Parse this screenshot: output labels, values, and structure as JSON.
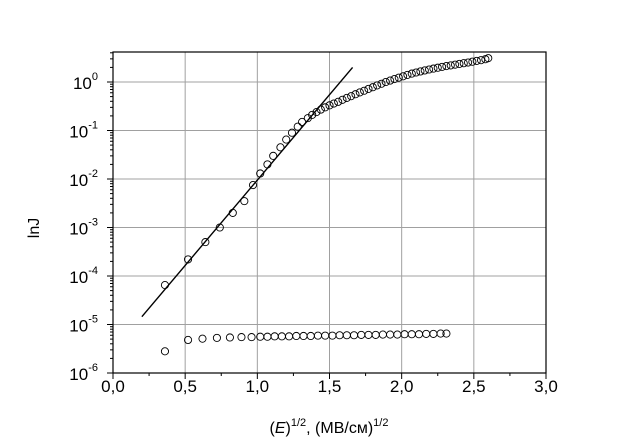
{
  "chart_data": {
    "type": "scatter",
    "title": "",
    "xlabel": "(E)1/2, (МВ/см)1/2",
    "xlabel_parts": {
      "var": "E",
      "exp1": "1/2",
      "rest": ", (МВ/см)",
      "exp2": "1/2"
    },
    "ylabel": "lnJ",
    "xlim": [
      0.0,
      3.0
    ],
    "ylim": [
      1e-06,
      5
    ],
    "yscale": "log",
    "grid": true,
    "x_ticks": [
      "0,0",
      "0,5",
      "1,0",
      "1,5",
      "2,0",
      "2,5",
      "3,0"
    ],
    "x_tick_values": [
      0.0,
      0.5,
      1.0,
      1.5,
      2.0,
      2.5,
      3.0
    ],
    "y_ticks": [
      {
        "base": "10",
        "exp": "-6",
        "value": 1e-06
      },
      {
        "base": "10",
        "exp": "-5",
        "value": 1e-05
      },
      {
        "base": "10",
        "exp": "-4",
        "value": 0.0001
      },
      {
        "base": "10",
        "exp": "-3",
        "value": 0.001
      },
      {
        "base": "10",
        "exp": "-2",
        "value": 0.01
      },
      {
        "base": "10",
        "exp": "-1",
        "value": 0.1
      },
      {
        "base": "10",
        "exp": "0",
        "value": 1
      }
    ],
    "marker_color": "#000000",
    "marker": "open-circle",
    "series": [
      {
        "marker": "open-circle",
        "x": [
          0.36,
          0.52,
          0.64,
          0.74,
          0.83,
          0.91,
          0.97,
          1.02,
          1.07,
          1.11,
          1.16,
          1.2,
          1.24,
          1.28,
          1.31,
          1.35,
          1.38,
          1.41,
          1.44,
          1.47,
          1.5,
          1.53,
          1.56,
          1.59,
          1.62,
          1.65,
          1.68,
          1.71,
          1.74,
          1.77,
          1.8,
          1.83,
          1.86,
          1.89,
          1.92,
          1.95,
          1.98,
          2.01,
          2.04,
          2.07,
          2.1,
          2.13,
          2.16,
          2.19,
          2.22,
          2.25,
          2.28,
          2.31,
          2.34,
          2.37,
          2.4,
          2.43,
          2.46,
          2.49,
          2.52,
          2.55,
          2.58,
          2.6
        ],
        "y": [
          6.5e-05,
          0.00022,
          0.0005,
          0.001,
          0.002,
          0.0035,
          0.0075,
          0.013,
          0.02,
          0.03,
          0.045,
          0.065,
          0.09,
          0.12,
          0.15,
          0.18,
          0.21,
          0.24,
          0.27,
          0.3,
          0.33,
          0.36,
          0.39,
          0.43,
          0.47,
          0.51,
          0.56,
          0.61,
          0.66,
          0.72,
          0.78,
          0.85,
          0.92,
          1.0,
          1.07,
          1.15,
          1.23,
          1.31,
          1.4,
          1.49,
          1.57,
          1.65,
          1.73,
          1.81,
          1.89,
          1.97,
          2.05,
          2.13,
          2.2,
          2.28,
          2.36,
          2.44,
          2.52,
          2.62,
          2.72,
          2.82,
          2.95,
          3.1
        ]
      },
      {
        "marker": "open-circle",
        "x": [
          0.36,
          0.52,
          0.62,
          0.72,
          0.81,
          0.89,
          0.96,
          1.02,
          1.07,
          1.12,
          1.17,
          1.22,
          1.27,
          1.32,
          1.37,
          1.42,
          1.47,
          1.52,
          1.57,
          1.62,
          1.67,
          1.72,
          1.77,
          1.82,
          1.87,
          1.92,
          1.97,
          2.02,
          2.07,
          2.12,
          2.17,
          2.22,
          2.27,
          2.31
        ],
        "y": [
          2.8e-06,
          4.8e-06,
          5.1e-06,
          5.3e-06,
          5.4e-06,
          5.5e-06,
          5.5e-06,
          5.6e-06,
          5.6e-06,
          5.7e-06,
          5.7e-06,
          5.7e-06,
          5.8e-06,
          5.8e-06,
          5.8e-06,
          5.9e-06,
          5.9e-06,
          5.9e-06,
          6e-06,
          6e-06,
          6e-06,
          6.1e-06,
          6.1e-06,
          6.1e-06,
          6.2e-06,
          6.2e-06,
          6.2e-06,
          6.3e-06,
          6.3e-06,
          6.3e-06,
          6.4e-06,
          6.4e-06,
          6.5e-06,
          6.5e-06
        ]
      },
      {
        "type": "line",
        "x": [
          0.2,
          1.66
        ],
        "y": [
          1.45e-05,
          2.0
        ]
      }
    ]
  }
}
